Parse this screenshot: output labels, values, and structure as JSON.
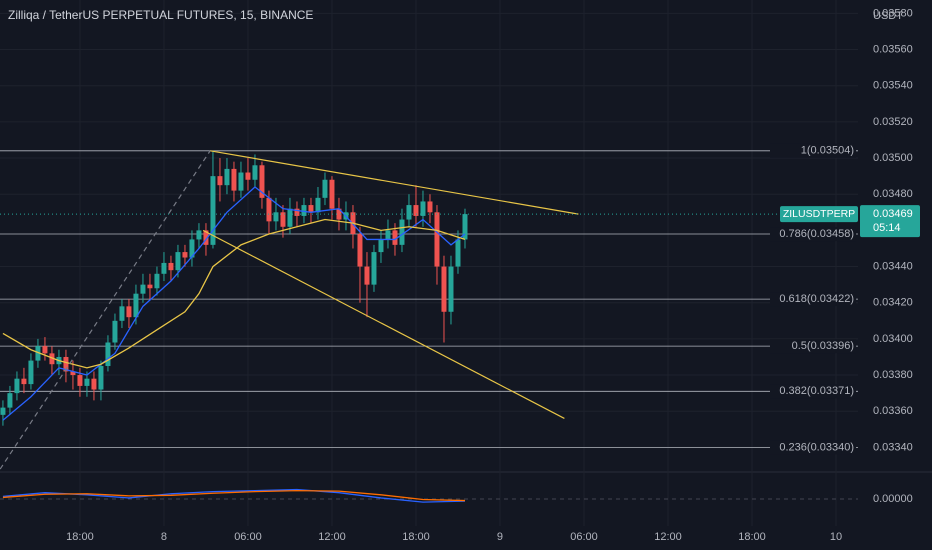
{
  "chart_data": {
    "type": "candlestick",
    "title": "Zilliqa / TetherUS PERPETUAL FUTURES, 15, BINANCE",
    "y_unit": "USDT",
    "x": [
      12.5,
      13,
      13.5,
      14,
      14.5,
      15,
      15.5,
      16,
      16.5,
      17,
      17.5,
      18,
      18.5,
      19,
      19.5,
      20,
      20.5,
      21,
      21.5,
      22,
      22.5,
      23,
      23.5,
      24,
      24.5,
      25,
      25.5,
      26,
      26.5,
      27,
      27.5,
      28,
      28.5,
      29,
      29.5,
      30,
      30.5,
      31,
      31.5,
      32,
      32.5,
      33,
      33.5,
      34,
      34.5,
      35,
      35.5,
      36,
      36.5,
      37,
      37.5,
      38,
      38.5,
      39,
      39.5,
      40,
      40.5,
      41,
      41.5,
      42,
      42.5,
      43,
      43.5,
      44,
      44.5,
      45,
      45.5
    ],
    "open": [
      0.03358,
      0.03362,
      0.0337,
      0.03378,
      0.03375,
      0.03388,
      0.03396,
      0.03392,
      0.03386,
      0.0339,
      0.03382,
      0.0338,
      0.03374,
      0.03378,
      0.03372,
      0.03385,
      0.03398,
      0.0341,
      0.03418,
      0.03412,
      0.03425,
      0.0343,
      0.03428,
      0.03436,
      0.03442,
      0.03438,
      0.03448,
      0.03445,
      0.03455,
      0.0346,
      0.03452,
      0.0349,
      0.03485,
      0.03494,
      0.03482,
      0.03492,
      0.03488,
      0.03496,
      0.03478,
      0.03465,
      0.0347,
      0.03462,
      0.03472,
      0.03468,
      0.03474,
      0.0347,
      0.03478,
      0.03488,
      0.03472,
      0.03466,
      0.0347,
      0.03458,
      0.0344,
      0.0343,
      0.03448,
      0.03455,
      0.0346,
      0.03452,
      0.03466,
      0.03474,
      0.03468,
      0.03476,
      0.0347,
      0.0344,
      0.03415,
      0.0344,
      0.03455
    ],
    "high": [
      0.03366,
      0.03374,
      0.03382,
      0.03384,
      0.03392,
      0.034,
      0.03401,
      0.03396,
      0.03394,
      0.03394,
      0.03388,
      0.03384,
      0.03382,
      0.03382,
      0.03388,
      0.03402,
      0.03414,
      0.03422,
      0.03422,
      0.0343,
      0.03436,
      0.03436,
      0.0344,
      0.03448,
      0.03446,
      0.03452,
      0.03452,
      0.0346,
      0.03464,
      0.03464,
      0.03504,
      0.035,
      0.035,
      0.03498,
      0.03498,
      0.035,
      0.03502,
      0.03498,
      0.03482,
      0.03478,
      0.03474,
      0.03478,
      0.03476,
      0.03478,
      0.03478,
      0.03484,
      0.03492,
      0.0349,
      0.03478,
      0.03476,
      0.03474,
      0.03462,
      0.03448,
      0.03452,
      0.0346,
      0.03466,
      0.03464,
      0.03472,
      0.0348,
      0.03485,
      0.03482,
      0.0348,
      0.03474,
      0.03446,
      0.03446,
      0.0346,
      0.03472
    ],
    "low": [
      0.03352,
      0.03358,
      0.03366,
      0.0337,
      0.03372,
      0.03384,
      0.03388,
      0.0338,
      0.0338,
      0.03376,
      0.03372,
      0.03368,
      0.03368,
      0.03366,
      0.03366,
      0.03382,
      0.03394,
      0.03406,
      0.03406,
      0.03408,
      0.0342,
      0.03422,
      0.03424,
      0.03432,
      0.03432,
      0.03434,
      0.0344,
      0.0344,
      0.0345,
      0.03446,
      0.0345,
      0.03476,
      0.0348,
      0.03476,
      0.03478,
      0.03482,
      0.03484,
      0.03472,
      0.03458,
      0.0346,
      0.03456,
      0.03458,
      0.03462,
      0.03464,
      0.03464,
      0.03466,
      0.03474,
      0.03466,
      0.0346,
      0.0346,
      0.0345,
      0.0342,
      0.03412,
      0.03426,
      0.03442,
      0.0345,
      0.03446,
      0.03448,
      0.03462,
      0.03462,
      0.03462,
      0.03464,
      0.0343,
      0.03398,
      0.03408,
      0.03436,
      0.0345
    ],
    "close": [
      0.03362,
      0.0337,
      0.03378,
      0.03375,
      0.03388,
      0.03396,
      0.03392,
      0.03386,
      0.0339,
      0.03382,
      0.0338,
      0.03374,
      0.03378,
      0.03372,
      0.03385,
      0.03398,
      0.0341,
      0.03418,
      0.03412,
      0.03425,
      0.0343,
      0.03428,
      0.03436,
      0.03442,
      0.03438,
      0.03448,
      0.03445,
      0.03455,
      0.0346,
      0.03452,
      0.0349,
      0.03485,
      0.03494,
      0.03482,
      0.03492,
      0.03488,
      0.03496,
      0.03478,
      0.03465,
      0.0347,
      0.03462,
      0.03472,
      0.03468,
      0.03474,
      0.0347,
      0.03478,
      0.03488,
      0.03472,
      0.03466,
      0.0347,
      0.03458,
      0.0344,
      0.0343,
      0.03448,
      0.03455,
      0.0346,
      0.03452,
      0.03466,
      0.03474,
      0.03468,
      0.03476,
      0.0347,
      0.0344,
      0.03415,
      0.0344,
      0.03455,
      0.03469
    ],
    "up_color": "#26a69a",
    "down_color": "#ef5350",
    "moving_averages": [
      {
        "color": "#2962ff",
        "x": [
          12.5,
          14.5,
          16.5,
          18.5,
          20.5,
          22.5,
          24.5,
          26.5,
          28.5,
          30.5,
          32.5,
          34.5,
          36.5,
          38.5,
          40.5,
          42.5,
          44.5,
          45.5
        ],
        "values": [
          0.03355,
          0.03368,
          0.03384,
          0.0338,
          0.03392,
          0.03418,
          0.03432,
          0.0345,
          0.0347,
          0.03484,
          0.03472,
          0.0347,
          0.03472,
          0.03455,
          0.03455,
          0.03466,
          0.03452,
          0.03458
        ]
      },
      {
        "color": "#e8c547",
        "x": [
          12.5,
          14.5,
          16.5,
          18.5,
          19.5,
          21.5,
          23.5,
          25.5,
          26.5,
          27.5,
          29.5,
          31.5,
          33.5,
          35.5,
          37.5,
          39.5,
          41.5,
          43.5,
          45.5
        ],
        "values": [
          0.03403,
          0.03394,
          0.03388,
          0.03384,
          0.03386,
          0.03395,
          0.03405,
          0.03415,
          0.03425,
          0.0344,
          0.03452,
          0.03458,
          0.03462,
          0.03466,
          0.03464,
          0.0346,
          0.03462,
          0.0346,
          0.03455
        ]
      }
    ],
    "fib_levels": [
      {
        "value": 0.03504,
        "label": "1(0.03504)"
      },
      {
        "value": 0.03458,
        "label": "0.786(0.03458)"
      },
      {
        "value": 0.03422,
        "label": "0.618(0.03422)"
      },
      {
        "value": 0.03396,
        "label": "0.5(0.03396)"
      },
      {
        "value": 0.03371,
        "label": "0.382(0.03371)"
      },
      {
        "value": 0.0334,
        "label": "0.236(0.03340)"
      }
    ],
    "trend_lines": [
      {
        "color": "#e8c547",
        "dashed": false,
        "x": [
          27.3,
          53.6
        ],
        "y": [
          0.03504,
          0.03469
        ]
      },
      {
        "color": "#e8c547",
        "dashed": false,
        "x": [
          26.8,
          52.6
        ],
        "y": [
          0.0346,
          0.03356
        ]
      },
      {
        "color": "#787b86",
        "dashed": true,
        "x": [
          12.3,
          27.3
        ],
        "y": [
          0.03328,
          0.03504
        ]
      }
    ],
    "last_price": {
      "value": 0.03469,
      "label": "0.03469"
    },
    "symbol": "ZILUSDTPERP",
    "countdown": "05:14",
    "xlim": [
      12.29,
      73.57
    ],
    "ylim": [
      0.033275,
      0.035874
    ],
    "xticks": [
      {
        "value": 18,
        "label": "18:00"
      },
      {
        "value": 24,
        "label": "8"
      },
      {
        "value": 30,
        "label": "06:00"
      },
      {
        "value": 36,
        "label": "12:00"
      },
      {
        "value": 42,
        "label": "18:00"
      },
      {
        "value": 48,
        "label": "9"
      },
      {
        "value": 54,
        "label": "06:00"
      },
      {
        "value": 60,
        "label": "12:00"
      },
      {
        "value": 66,
        "label": "18:00"
      },
      {
        "value": 72,
        "label": "10"
      }
    ],
    "yticks": [
      {
        "value": 0.0358,
        "label": "0.03580"
      },
      {
        "value": 0.0356,
        "label": "0.03560"
      },
      {
        "value": 0.0354,
        "label": "0.03540"
      },
      {
        "value": 0.0352,
        "label": "0.03520"
      },
      {
        "value": 0.035,
        "label": "0.03500"
      },
      {
        "value": 0.0348,
        "label": "0.03480"
      },
      {
        "value": 0.0344,
        "label": "0.03440"
      },
      {
        "value": 0.0342,
        "label": "0.03420"
      },
      {
        "value": 0.034,
        "label": "0.03400"
      },
      {
        "value": 0.0338,
        "label": "0.03380"
      },
      {
        "value": 0.0336,
        "label": "0.03360"
      },
      {
        "value": 0.0334,
        "label": "0.03340"
      }
    ],
    "grid": true,
    "macd": {
      "ylim": [
        -4e-05,
        4e-05
      ],
      "yticks": [
        {
          "value": 0,
          "label": "0.00000"
        }
      ],
      "series": [
        {
          "color": "#2962ff",
          "x": [
            12.5,
            15.5,
            18.5,
            21.5,
            24.5,
            27.5,
            30.5,
            33.5,
            36.5,
            39.5,
            42.5,
            45.5
          ],
          "values": [
            5e-06,
            1.2e-05,
            8e-06,
            2e-06,
            1e-05,
            1.4e-05,
            1.6e-05,
            1.8e-05,
            1.2e-05,
            2e-06,
            -6e-06,
            -4e-06
          ]
        },
        {
          "color": "#ff6d00",
          "x": [
            12.5,
            15.5,
            18.5,
            21.5,
            24.5,
            27.5,
            30.5,
            33.5,
            36.5,
            39.5,
            42.5,
            45.5
          ],
          "values": [
            3e-06,
            9e-06,
            1e-05,
            6e-06,
            7e-06,
            1.1e-05,
            1.4e-05,
            1.6e-05,
            1.5e-05,
            8e-06,
            -1e-06,
            -3e-06
          ]
        }
      ]
    }
  }
}
